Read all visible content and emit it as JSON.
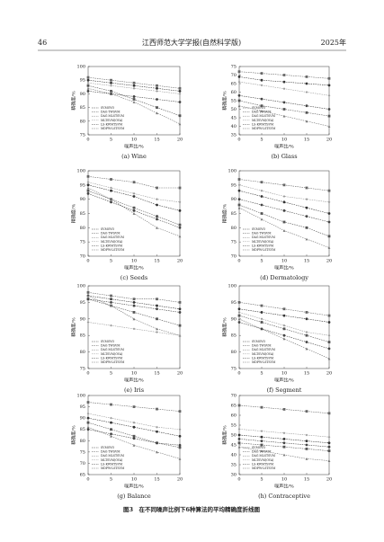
{
  "header": {
    "page_number": "46",
    "journal": "江西师范大学学报(自然科学版)",
    "year": "2025年"
  },
  "figure_caption": "图3　在不同噪声比例下6种算法的平均精确度折线图",
  "chart_data": [
    {
      "type": "line",
      "title": "(a) Wine",
      "x_label": "噪声比/%",
      "y_label": "精确度/%",
      "x": [
        0,
        5,
        10,
        15,
        20
      ],
      "xlim": [
        0,
        20
      ],
      "xticks": [
        0,
        5,
        10,
        15,
        20
      ],
      "ylim": [
        75,
        100
      ],
      "yticks": [
        75,
        80,
        85,
        90,
        95,
        100
      ],
      "series": [
        {
          "name": "SVMOVO",
          "color": "#333333",
          "values": [
            95,
            94,
            93,
            92,
            91
          ]
        },
        {
          "name": "DAG TWSVM",
          "color": "#555555",
          "values": [
            93,
            91,
            88,
            85,
            82
          ]
        },
        {
          "name": "DAG MLSTSVM",
          "color": "#777777",
          "values": [
            92,
            90,
            87,
            83,
            79
          ]
        },
        {
          "name": "MLTSVM(OVA)",
          "color": "#999999",
          "values": [
            94,
            93,
            92,
            91,
            90
          ]
        },
        {
          "name": "LS-KWMTSVM",
          "color": "#444444",
          "values": [
            91,
            90,
            89,
            88,
            87
          ]
        },
        {
          "name": "MDPW-LSTSVM",
          "color": "#666666",
          "values": [
            96,
            95,
            94,
            93,
            92
          ]
        }
      ]
    },
    {
      "type": "line",
      "title": "(b) Glass",
      "x_label": "噪声比/%",
      "y_label": "精确度/%",
      "x": [
        0,
        5,
        10,
        15,
        20
      ],
      "xlim": [
        0,
        20
      ],
      "xticks": [
        0,
        5,
        10,
        15,
        20
      ],
      "ylim": [
        35,
        75
      ],
      "yticks": [
        35,
        40,
        45,
        50,
        55,
        60,
        65,
        70,
        75
      ],
      "series": [
        {
          "name": "SVMOVO",
          "color": "#333333",
          "values": [
            69,
            67,
            66,
            65,
            64
          ]
        },
        {
          "name": "DAG TWSVM",
          "color": "#555555",
          "values": [
            55,
            52,
            50,
            48,
            46
          ]
        },
        {
          "name": "DAG MLSTSVM",
          "color": "#777777",
          "values": [
            52,
            49,
            46,
            43,
            40
          ]
        },
        {
          "name": "MLTSVM(OVA)",
          "color": "#999999",
          "values": [
            66,
            64,
            62,
            60,
            58
          ]
        },
        {
          "name": "LS-KWMTSVM",
          "color": "#444444",
          "values": [
            58,
            56,
            54,
            52,
            50
          ]
        },
        {
          "name": "MDPW-LSTSVM",
          "color": "#666666",
          "values": [
            72,
            71,
            70,
            69,
            68
          ]
        }
      ]
    },
    {
      "type": "line",
      "title": "(c) Seeds",
      "x_label": "噪声比/%",
      "y_label": "精确度/%",
      "x": [
        0,
        5,
        10,
        15,
        20
      ],
      "xlim": [
        0,
        20
      ],
      "xticks": [
        0,
        5,
        10,
        15,
        20
      ],
      "ylim": [
        70,
        100
      ],
      "yticks": [
        70,
        75,
        80,
        85,
        90,
        95,
        100
      ],
      "series": [
        {
          "name": "SVMOVO",
          "color": "#333333",
          "values": [
            95,
            93,
            91,
            88,
            86
          ]
        },
        {
          "name": "DAG TWSVM",
          "color": "#555555",
          "values": [
            93,
            90,
            87,
            84,
            81
          ]
        },
        {
          "name": "DAG MLSTSVM",
          "color": "#777777",
          "values": [
            94,
            90,
            85,
            80,
            77
          ]
        },
        {
          "name": "MLTSVM(OVA)",
          "color": "#999999",
          "values": [
            96,
            94,
            92,
            90,
            89
          ]
        },
        {
          "name": "LS-KWMTSVM",
          "color": "#444444",
          "values": [
            92,
            89,
            86,
            83,
            80
          ]
        },
        {
          "name": "MDPW-LSTSVM",
          "color": "#666666",
          "values": [
            98,
            97,
            96,
            94,
            94
          ]
        }
      ]
    },
    {
      "type": "line",
      "title": "(d) Dermatology",
      "x_label": "噪声比/%",
      "y_label": "精确度/%",
      "x": [
        0,
        5,
        10,
        15,
        20
      ],
      "xlim": [
        0,
        20
      ],
      "xticks": [
        0,
        5,
        10,
        15,
        20
      ],
      "ylim": [
        70,
        100
      ],
      "yticks": [
        70,
        75,
        80,
        85,
        90,
        95,
        100
      ],
      "series": [
        {
          "name": "SVMOVO",
          "color": "#333333",
          "values": [
            93,
            91,
            89,
            87,
            85
          ]
        },
        {
          "name": "DAG TWSVM",
          "color": "#555555",
          "values": [
            88,
            85,
            82,
            80,
            77
          ]
        },
        {
          "name": "DAG MLSTSVM",
          "color": "#777777",
          "values": [
            87,
            83,
            79,
            76,
            73
          ]
        },
        {
          "name": "MLTSVM(OVA)",
          "color": "#999999",
          "values": [
            95,
            93,
            91,
            90,
            89
          ]
        },
        {
          "name": "LS-KWMTSVM",
          "color": "#444444",
          "values": [
            90,
            88,
            86,
            84,
            82
          ]
        },
        {
          "name": "MDPW-LSTSVM",
          "color": "#666666",
          "values": [
            97,
            96,
            95,
            94,
            93
          ]
        }
      ]
    },
    {
      "type": "line",
      "title": "(e) Iris",
      "x_label": "噪声比/%",
      "y_label": "精确度/%",
      "x": [
        0,
        5,
        10,
        15,
        20
      ],
      "xlim": [
        0,
        20
      ],
      "xticks": [
        0,
        5,
        10,
        15,
        20
      ],
      "ylim": [
        75,
        100
      ],
      "yticks": [
        75,
        80,
        85,
        90,
        95,
        100
      ],
      "series": [
        {
          "name": "SVMOVO",
          "color": "#333333",
          "values": [
            97,
            96,
            95,
            94,
            93
          ]
        },
        {
          "name": "DAG TWSVM",
          "color": "#555555",
          "values": [
            96,
            94,
            92,
            90,
            88
          ]
        },
        {
          "name": "DAG MLSTSVM",
          "color": "#777777",
          "values": [
            97,
            94,
            90,
            87,
            85
          ]
        },
        {
          "name": "MLTSVM(OVA)",
          "color": "#999999",
          "values": [
            89,
            88,
            87,
            86,
            85
          ]
        },
        {
          "name": "LS-KWMTSVM",
          "color": "#444444",
          "values": [
            96,
            95,
            94,
            93,
            92
          ]
        },
        {
          "name": "MDPW-LSTSVM",
          "color": "#666666",
          "values": [
            98,
            97,
            96,
            96,
            95
          ]
        }
      ]
    },
    {
      "type": "line",
      "title": "(f) Segment",
      "x_label": "噪声比/%",
      "y_label": "精确度/%",
      "x": [
        0,
        5,
        10,
        15,
        20
      ],
      "xlim": [
        0,
        20
      ],
      "xticks": [
        0,
        5,
        10,
        15,
        20
      ],
      "ylim": [
        75,
        100
      ],
      "yticks": [
        75,
        80,
        85,
        90,
        95,
        100
      ],
      "series": [
        {
          "name": "SVMOVO",
          "color": "#333333",
          "values": [
            93,
            92,
            91,
            90,
            89
          ]
        },
        {
          "name": "DAG TWSVM",
          "color": "#555555",
          "values": [
            91,
            89,
            87,
            85,
            83
          ]
        },
        {
          "name": "DAG MLSTSVM",
          "color": "#777777",
          "values": [
            90,
            87,
            84,
            81,
            78
          ]
        },
        {
          "name": "MLTSVM(OVA)",
          "color": "#999999",
          "values": [
            92,
            90,
            88,
            86,
            85
          ]
        },
        {
          "name": "LS-KWMTSVM",
          "color": "#444444",
          "values": [
            89,
            87,
            85,
            83,
            81
          ]
        },
        {
          "name": "MDPW-LSTSVM",
          "color": "#666666",
          "values": [
            95,
            94,
            93,
            92,
            91
          ]
        }
      ]
    },
    {
      "type": "line",
      "title": "(g) Balance",
      "x_label": "噪声比/%",
      "y_label": "精确度/%",
      "x": [
        0,
        5,
        10,
        15,
        20
      ],
      "xlim": [
        0,
        20
      ],
      "xticks": [
        0,
        5,
        10,
        15,
        20
      ],
      "ylim": [
        65,
        100
      ],
      "yticks": [
        65,
        70,
        75,
        80,
        85,
        90,
        95,
        100
      ],
      "series": [
        {
          "name": "SVMOVO",
          "color": "#333333",
          "values": [
            90,
            88,
            86,
            84,
            82
          ]
        },
        {
          "name": "DAG TWSVM",
          "color": "#555555",
          "values": [
            88,
            85,
            82,
            79,
            77
          ]
        },
        {
          "name": "DAG MLSTSVM",
          "color": "#777777",
          "values": [
            86,
            82,
            78,
            75,
            72
          ]
        },
        {
          "name": "MLTSVM(OVA)",
          "color": "#999999",
          "values": [
            92,
            90,
            88,
            86,
            85
          ]
        },
        {
          "name": "LS-KWMTSVM",
          "color": "#444444",
          "values": [
            85,
            83,
            81,
            79,
            78
          ]
        },
        {
          "name": "MDPW-LSTSVM",
          "color": "#666666",
          "values": [
            97,
            96,
            95,
            94,
            93
          ]
        }
      ]
    },
    {
      "type": "line",
      "title": "(h) Contraceptive",
      "x_label": "噪声比/%",
      "y_label": "精确度/%",
      "x": [
        0,
        5,
        10,
        15,
        20
      ],
      "xlim": [
        0,
        20
      ],
      "xticks": [
        0,
        5,
        10,
        15,
        20
      ],
      "ylim": [
        30,
        70
      ],
      "yticks": [
        30,
        35,
        40,
        45,
        50,
        55,
        60,
        65,
        70
      ],
      "series": [
        {
          "name": "SVMOVO",
          "color": "#333333",
          "values": [
            50,
            49,
            48,
            47,
            46
          ]
        },
        {
          "name": "DAG TWSVM",
          "color": "#555555",
          "values": [
            46,
            45,
            44,
            43,
            42
          ]
        },
        {
          "name": "DAG MLSTSVM",
          "color": "#777777",
          "values": [
            44,
            42,
            40,
            38,
            37
          ]
        },
        {
          "name": "MLTSVM(OVA)",
          "color": "#999999",
          "values": [
            53,
            52,
            51,
            50,
            49
          ]
        },
        {
          "name": "LS-KWMTSVM",
          "color": "#444444",
          "values": [
            48,
            47,
            46,
            45,
            44
          ]
        },
        {
          "name": "MDPW-LSTSVM",
          "color": "#666666",
          "values": [
            65,
            64,
            63,
            62,
            61
          ]
        }
      ]
    }
  ]
}
